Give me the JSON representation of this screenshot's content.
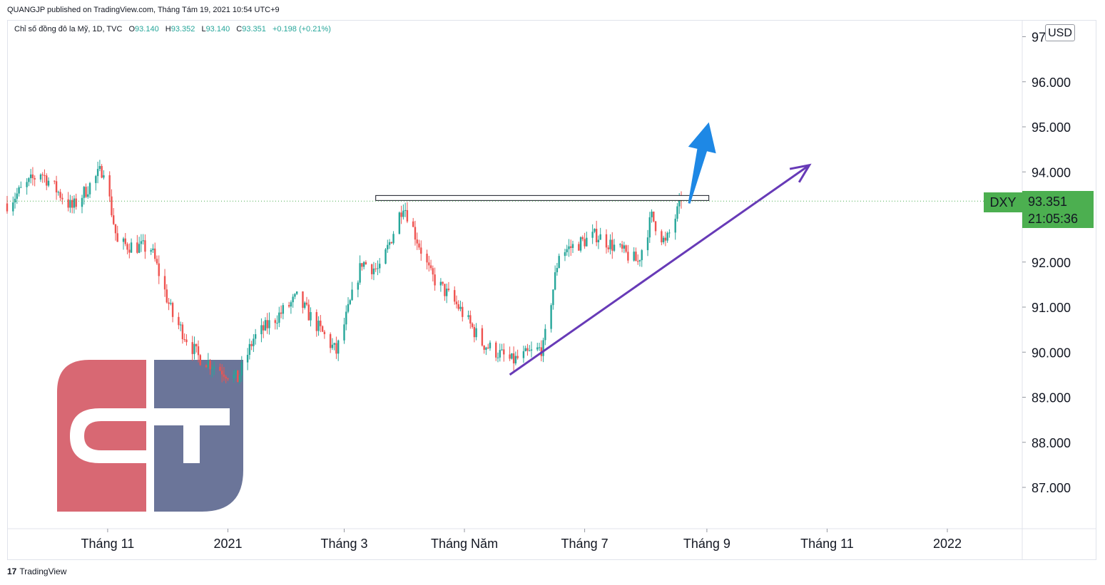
{
  "header": {
    "credit": "QUANGJP published on TradingView.com, Tháng Tám 19, 2021 10:54 UTC+9"
  },
  "legend": {
    "symbol": "Chỉ số đồng đô la Mỹ, 1D, TVC",
    "o_label": "O",
    "o_value": "93.140",
    "h_label": "H",
    "h_value": "93.352",
    "l_label": "L",
    "l_value": "93.140",
    "c_label": "C",
    "c_value": "93.351",
    "change": "+0.198 (+0.21%)"
  },
  "currency_label": "USD",
  "ticker_label": "DXY",
  "last_price": "93.351",
  "countdown": "21:05:36",
  "footer": {
    "logo": "17",
    "brand": "TradingView"
  },
  "colors": {
    "up": "#26a69a",
    "down": "#ef5350",
    "price_tag": "#4caf50",
    "trendline": "#673ab7",
    "arrow": "#1e88e5",
    "logo_red": "#d86873",
    "logo_blue": "#6b7599"
  },
  "chart_data": {
    "type": "candlestick",
    "y_axis": {
      "ticks": [
        97,
        96,
        95,
        94,
        93,
        92,
        91,
        90,
        89,
        88,
        87
      ],
      "tick_labels": [
        "97",
        "96.000",
        "95.000",
        "94.000",
        "93.000",
        "92.000",
        "91.000",
        "90.000",
        "89.000",
        "88.000",
        "87.000"
      ],
      "range": [
        86,
        97.3
      ]
    },
    "x_axis": {
      "tick_labels": [
        "Tháng 11",
        "2021",
        "Tháng 3",
        "Tháng Năm",
        "Tháng 7",
        "Tháng 9",
        "Tháng 11",
        "2022"
      ],
      "tick_dates": [
        "2020-11-01",
        "2021-01-01",
        "2021-03-01",
        "2021-05-01",
        "2021-07-01",
        "2021-09-01",
        "2021-11-01",
        "2022-01-01"
      ],
      "range": [
        "2020-09-11",
        "2022-02-08"
      ]
    },
    "price_path": [
      [
        "2020-09-11",
        93.3
      ],
      [
        "2020-09-28",
        94.0
      ],
      [
        "2020-10-14",
        93.2
      ],
      [
        "2020-10-30",
        94.1
      ],
      [
        "2020-11-06",
        92.4
      ],
      [
        "2020-11-23",
        92.3
      ],
      [
        "2020-12-04",
        90.8
      ],
      [
        "2020-12-17",
        89.9
      ],
      [
        "2021-01-06",
        89.4
      ],
      [
        "2021-01-14",
        90.3
      ],
      [
        "2021-02-05",
        91.2
      ],
      [
        "2021-02-25",
        90.0
      ],
      [
        "2021-03-10",
        92.0
      ],
      [
        "2021-03-19",
        91.8
      ],
      [
        "2021-03-31",
        93.3
      ],
      [
        "2021-04-14",
        91.7
      ],
      [
        "2021-04-28",
        91.0
      ],
      [
        "2021-05-10",
        90.2
      ],
      [
        "2021-05-25",
        89.8
      ],
      [
        "2021-06-10",
        90.1
      ],
      [
        "2021-06-18",
        92.2
      ],
      [
        "2021-07-07",
        92.6
      ],
      [
        "2021-07-28",
        92.0
      ],
      [
        "2021-08-04",
        93.0
      ],
      [
        "2021-08-11",
        92.4
      ],
      [
        "2021-08-19",
        93.35
      ]
    ],
    "last": 93.351,
    "annotations": {
      "resistance_level": 93.35,
      "resistance_dates": [
        "2021-03-17",
        "2021-09-02"
      ],
      "trendline": {
        "from": [
          "2021-05-24",
          89.5
        ],
        "to": [
          "2021-10-23",
          94.15
        ]
      },
      "arrow": {
        "from": [
          "2021-08-23",
          93.3
        ],
        "to": [
          "2021-09-02",
          95.1
        ]
      }
    }
  }
}
